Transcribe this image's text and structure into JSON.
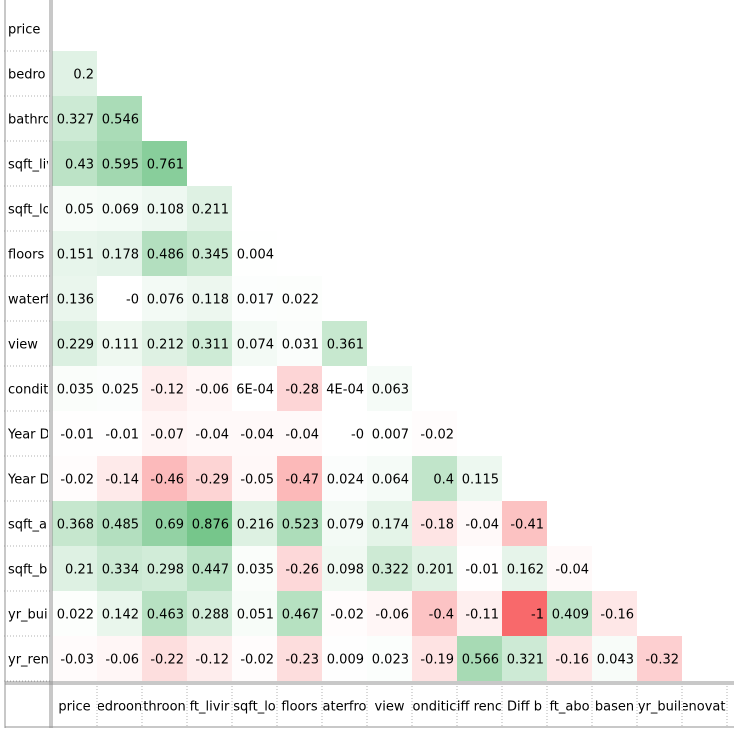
{
  "chart_data": {
    "type": "heatmap",
    "row_labels": [
      "price",
      "bedro",
      "bathro",
      "sqft_liv",
      "sqft_lo",
      "floors",
      "waterf",
      "view",
      "condit",
      "Year D",
      "Year D",
      "sqft_ab",
      "sqft_b",
      "yr_bui",
      "yr_ren"
    ],
    "col_labels": [
      "price",
      "edroon",
      "throon",
      "ft_livir",
      "sqft_lo",
      "floors",
      "aterfro",
      "view",
      "onditic",
      "iff renc",
      "Diff b",
      "ft_abo",
      "basen",
      "yr_buil",
      "renovate"
    ],
    "cells": [
      [],
      [
        "0.2"
      ],
      [
        "0.327",
        "0.546"
      ],
      [
        "0.43",
        "0.595",
        "0.761"
      ],
      [
        "0.05",
        "0.069",
        "0.108",
        "0.211"
      ],
      [
        "0.151",
        "0.178",
        "0.486",
        "0.345",
        "0.004"
      ],
      [
        "0.136",
        "-0",
        "0.076",
        "0.118",
        "0.017",
        "0.022"
      ],
      [
        "0.229",
        "0.111",
        "0.212",
        "0.311",
        "0.074",
        "0.031",
        "0.361"
      ],
      [
        "0.035",
        "0.025",
        "-0.12",
        "-0.06",
        "6E-04",
        "-0.28",
        "4E-04",
        "0.063"
      ],
      [
        "-0.01",
        "-0.01",
        "-0.07",
        "-0.04",
        "-0.04",
        "-0.04",
        "-0",
        "0.007",
        "-0.02"
      ],
      [
        "-0.02",
        "-0.14",
        "-0.46",
        "-0.29",
        "-0.05",
        "-0.47",
        "0.024",
        "0.064",
        "0.4",
        "0.115"
      ],
      [
        "0.368",
        "0.485",
        "0.69",
        "0.876",
        "0.216",
        "0.523",
        "0.079",
        "0.174",
        "-0.18",
        "-0.04",
        "-0.41"
      ],
      [
        "0.21",
        "0.334",
        "0.298",
        "0.447",
        "0.035",
        "-0.26",
        "0.098",
        "0.322",
        "0.201",
        "-0.01",
        "0.162",
        "-0.04"
      ],
      [
        "0.022",
        "0.142",
        "0.463",
        "0.288",
        "0.051",
        "0.467",
        "-0.02",
        "-0.06",
        "-0.4",
        "-0.11",
        "-1",
        "0.409",
        "-0.16"
      ],
      [
        "-0.03",
        "-0.06",
        "-0.22",
        "-0.12",
        "-0.02",
        "-0.23",
        "0.009",
        "0.023",
        "-0.19",
        "0.566",
        "0.321",
        "-0.16",
        "0.043",
        "-0.32"
      ]
    ],
    "color_positive": "#63BE7B",
    "color_negative": "#F8696B",
    "color_zero": "#FFFFFF",
    "grid_line_color": "#C0C0C0"
  }
}
